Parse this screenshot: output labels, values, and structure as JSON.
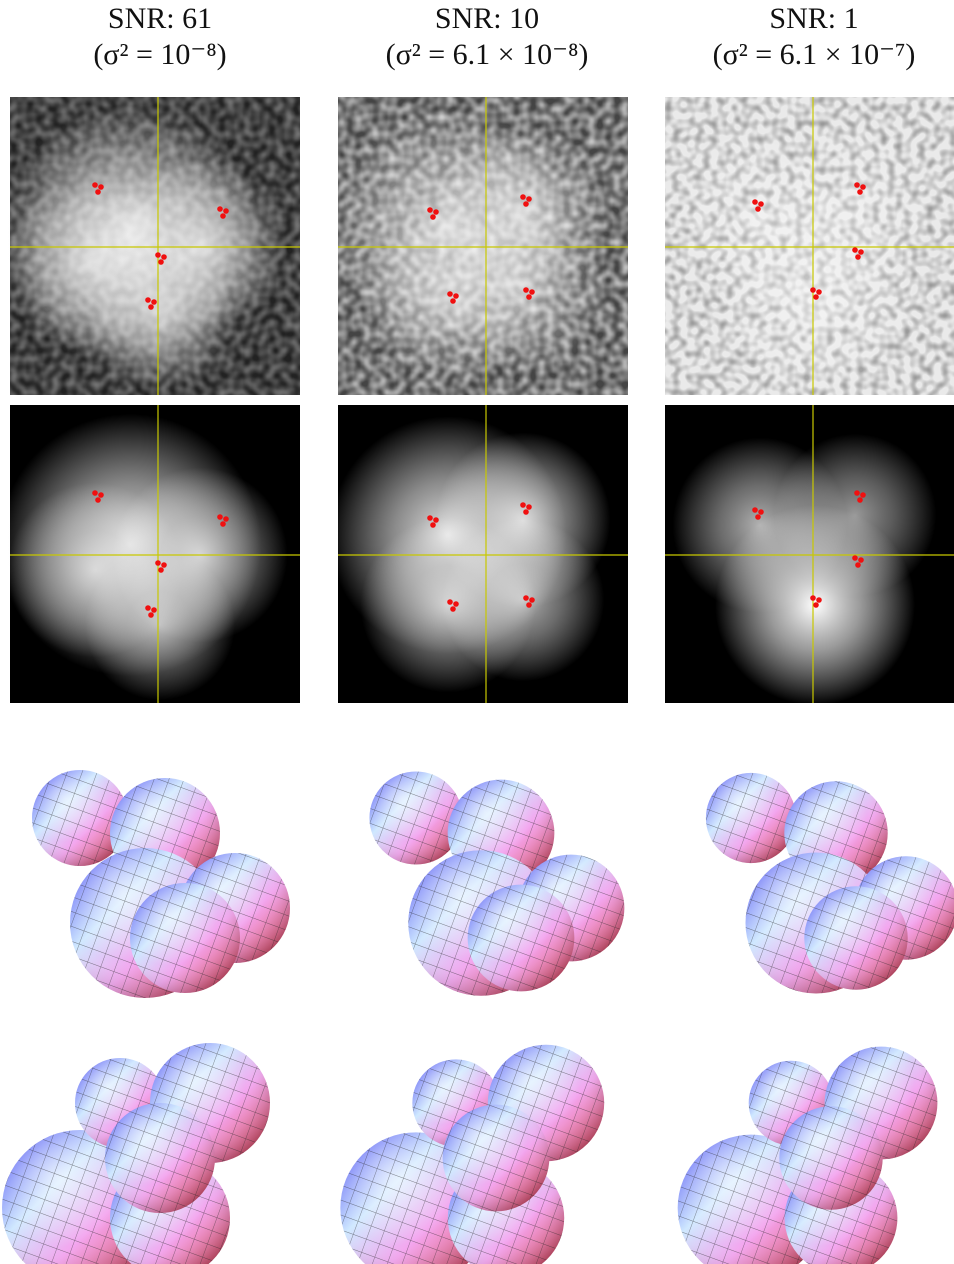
{
  "columns": [
    {
      "title": "SNR: 61",
      "subtitle": "(σ² = 10⁻⁸)"
    },
    {
      "title": "SNR: 10",
      "subtitle": "(σ² = 6.1 × 10⁻⁸)"
    },
    {
      "title": "SNR: 1",
      "subtitle": "(σ² = 6.1 × 10⁻⁷)"
    }
  ]
}
